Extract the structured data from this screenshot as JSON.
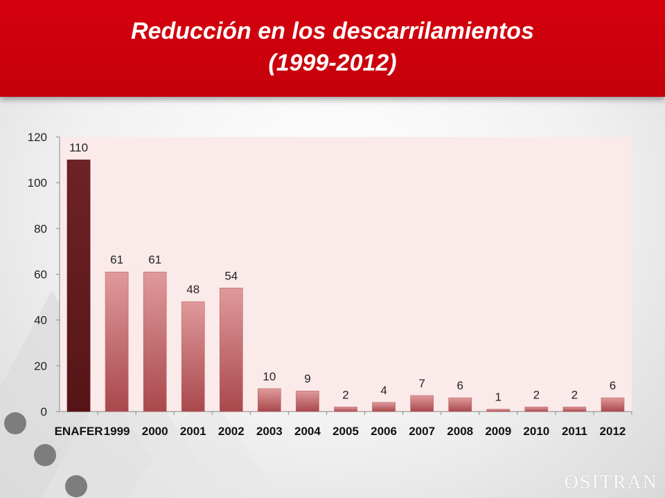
{
  "header": {
    "title_line1": "Reducción en los descarrilamientos",
    "title_line2": "(1999-2012)"
  },
  "brand": "OSITRAN",
  "colors": {
    "header_red": "#cc0010",
    "highlight_bar": "#6b2224",
    "bar": "#d98a8c",
    "plot_bg": "#fbeaea"
  },
  "chart_data": {
    "type": "bar",
    "categories": [
      "ENAFER",
      "1999",
      "2000",
      "2001",
      "2002",
      "2003",
      "2004",
      "2005",
      "2006",
      "2007",
      "2008",
      "2009",
      "2010",
      "2011",
      "2012"
    ],
    "values": [
      110,
      61,
      61,
      48,
      54,
      10,
      9,
      2,
      4,
      7,
      6,
      1,
      2,
      2,
      6
    ],
    "data_labels": [
      "110",
      "61",
      "61",
      "48",
      "54",
      "10",
      "9",
      "2",
      "4",
      "7",
      "6",
      "1",
      "2",
      "2",
      "6"
    ],
    "yticks": [
      "0",
      "20",
      "40",
      "60",
      "80",
      "100",
      "120"
    ],
    "ylim": [
      0,
      120
    ],
    "title": "",
    "xlabel": "",
    "ylabel": "",
    "grid": false,
    "legend": "none",
    "highlight_index": 0
  }
}
